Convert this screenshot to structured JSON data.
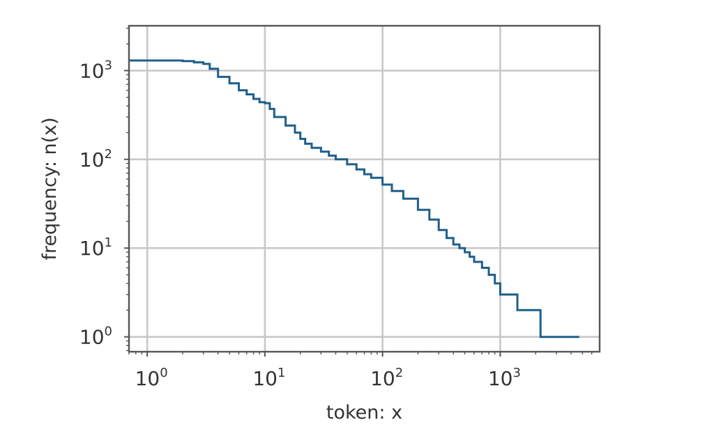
{
  "chart_data": {
    "type": "line",
    "title": "",
    "xlabel": "token: x",
    "ylabel": "frequency: n(x)",
    "xscale": "log",
    "yscale": "log",
    "xlim": [
      0.7,
      7000
    ],
    "ylim": [
      0.68,
      3200
    ],
    "grid": true,
    "line_color": "#1f5f8b",
    "x_ticks": [
      {
        "value": 1,
        "base": "10",
        "exp": "0"
      },
      {
        "value": 10,
        "base": "10",
        "exp": "1"
      },
      {
        "value": 100,
        "base": "10",
        "exp": "2"
      },
      {
        "value": 1000,
        "base": "10",
        "exp": "3"
      }
    ],
    "y_ticks": [
      {
        "value": 1,
        "base": "10",
        "exp": "0"
      },
      {
        "value": 10,
        "base": "10",
        "exp": "1"
      },
      {
        "value": 100,
        "base": "10",
        "exp": "2"
      },
      {
        "value": 1000,
        "base": "10",
        "exp": "3"
      }
    ],
    "series": [
      {
        "x": [
          1,
          2,
          2.5,
          3,
          3.4,
          4,
          5,
          6,
          7,
          8,
          9,
          10,
          11,
          12,
          15,
          18,
          20,
          22,
          25,
          30,
          35,
          40,
          50,
          60,
          70,
          80,
          100,
          120,
          150,
          200,
          250,
          300,
          350,
          400,
          450,
          500,
          550,
          600,
          700,
          800,
          900,
          1000,
          1400,
          2200,
          4700
        ],
        "y": [
          1300,
          1280,
          1240,
          1190,
          1050,
          850,
          720,
          600,
          540,
          480,
          440,
          430,
          370,
          300,
          240,
          200,
          170,
          150,
          135,
          122,
          110,
          100,
          88,
          77,
          68,
          62,
          52,
          44,
          36,
          27,
          21,
          16,
          13,
          11,
          10,
          9,
          8,
          7,
          6,
          5,
          4,
          3,
          2,
          1,
          1
        ]
      }
    ]
  }
}
